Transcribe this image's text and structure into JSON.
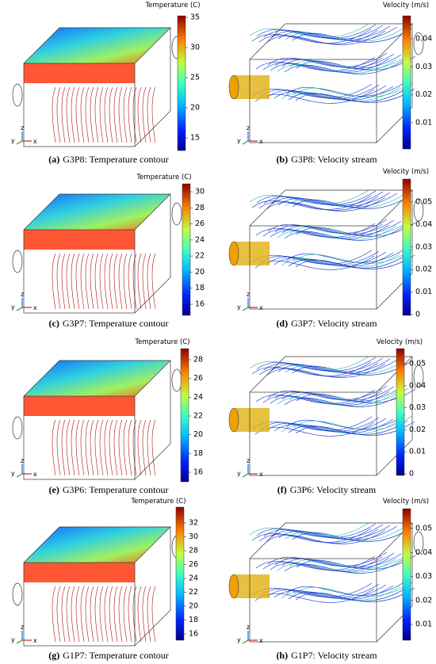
{
  "panels": [
    {
      "label": "(a)",
      "caption": "G3P8: Temperature contour",
      "colorbar_title": "Temperature (C)",
      "ticks": [
        35,
        30,
        25,
        20,
        15
      ],
      "triad": [
        "y",
        "z",
        "x"
      ]
    },
    {
      "label": "(b)",
      "caption": "G3P8: Velocity stream",
      "colorbar_title": "Velocity (m/s)",
      "ticks": [
        0.04,
        0.03,
        0.02,
        0.01
      ],
      "triad": [
        "y",
        "z",
        "x"
      ]
    },
    {
      "label": "(c)",
      "caption": "G3P7: Temperature contour",
      "colorbar_title": "Temperature (C)",
      "ticks": [
        30,
        28,
        26,
        24,
        22,
        20,
        18,
        16
      ],
      "triad": [
        "y",
        "z",
        "x"
      ]
    },
    {
      "label": "(d)",
      "caption": "G3P7: Velocity stream",
      "colorbar_title": "Velocity (m/s)",
      "ticks": [
        0.05,
        0.04,
        0.03,
        0.02,
        0.01,
        0
      ],
      "triad": [
        "y",
        "z",
        "x"
      ]
    },
    {
      "label": "(e)",
      "caption": "G3P6: Temperature contour",
      "colorbar_title": "Temperature (C)",
      "ticks": [
        28,
        26,
        24,
        22,
        20,
        18,
        16
      ],
      "triad": [
        "y",
        "z",
        "x"
      ]
    },
    {
      "label": "(f)",
      "caption": "G3P6: Velocity stream",
      "colorbar_title": "Velocity (m/s)",
      "ticks": [
        0.05,
        0.04,
        0.03,
        0.02,
        0.01,
        0
      ],
      "triad": [
        "y",
        "z",
        "x"
      ]
    },
    {
      "label": "(g)",
      "caption": "G1P7: Temperature contour",
      "colorbar_title": "Temperature (C)",
      "ticks": [
        32,
        30,
        28,
        26,
        24,
        22,
        20,
        18,
        16
      ],
      "triad": [
        "y",
        "z",
        "x"
      ]
    },
    {
      "label": "(h)",
      "caption": "G1P7: Velocity stream",
      "colorbar_title": "Velocity (m/s)",
      "ticks": [
        0.05,
        0.04,
        0.03,
        0.02,
        0.01
      ],
      "triad": [
        "y",
        "z",
        "x"
      ]
    }
  ]
}
